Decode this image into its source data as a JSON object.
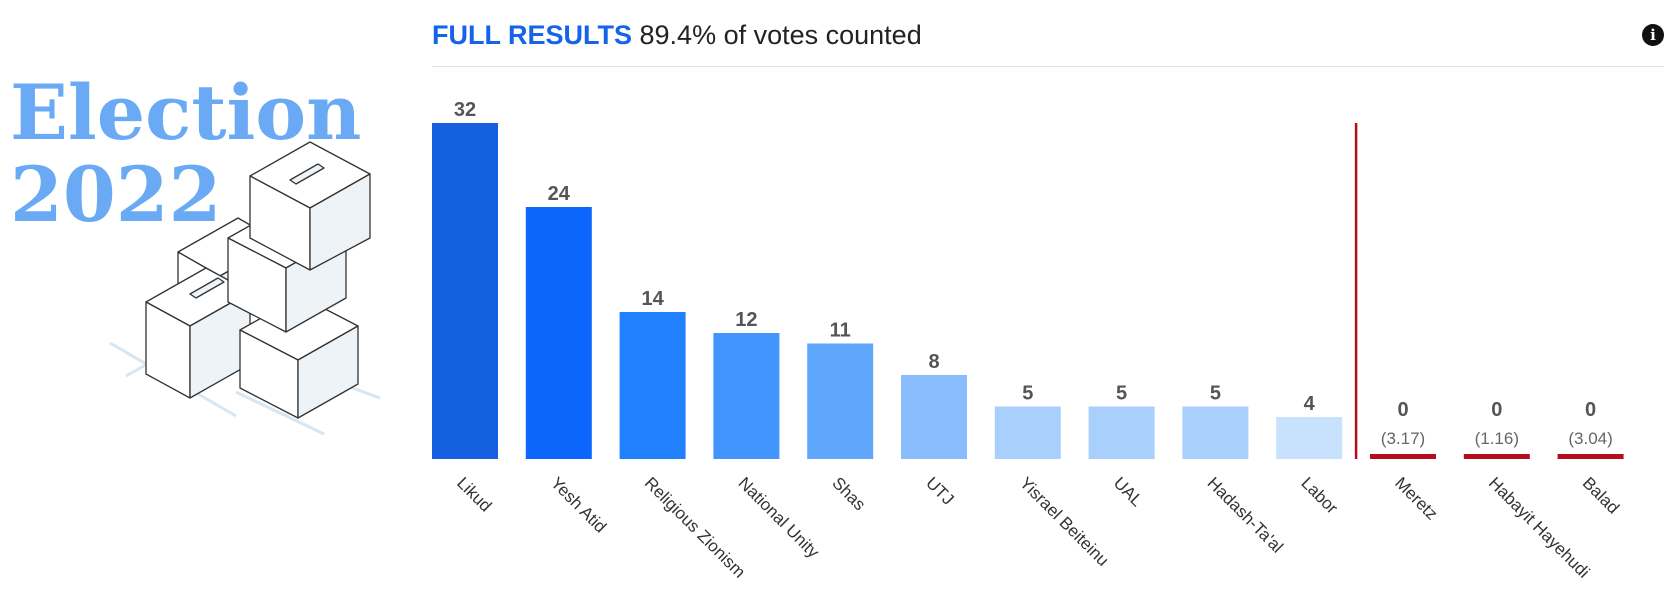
{
  "brand": {
    "title_line1": "Election",
    "title_line2": "2022"
  },
  "header": {
    "title_strong": "FULL RESULTS",
    "title_rest": "89.4% of votes counted",
    "info_icon": "info-icon"
  },
  "colors": {
    "bars": [
      "#1560e0",
      "#0d66fb",
      "#2180fd",
      "#4195fd",
      "#5ea7fd",
      "#88bcfc",
      "#a9d0fd",
      "#a9d0fd",
      "#a9d0fd",
      "#c8e1fd"
    ],
    "threshold": "#b50d1e"
  },
  "chart_data": {
    "type": "bar",
    "categories": [
      "Likud",
      "Yesh Atid",
      "Religious Zionism",
      "National Unity",
      "Shas",
      "UTJ",
      "Yisrael Beiteinu",
      "UAL",
      "Hadash-Ta'al",
      "Labor",
      "Meretz",
      "Habayit Hayehudi",
      "Balad"
    ],
    "values": [
      32,
      24,
      14,
      12,
      11,
      8,
      5,
      5,
      5,
      4,
      0,
      0,
      0
    ],
    "percent_labels": [
      "",
      "",
      "",
      "",
      "",
      "",
      "",
      "",
      "",
      "",
      "(3.17)",
      "(1.16)",
      "(3.04)"
    ],
    "threshold_after_index": 9,
    "ylim": [
      0,
      32
    ],
    "grid": false,
    "legend": "none"
  }
}
